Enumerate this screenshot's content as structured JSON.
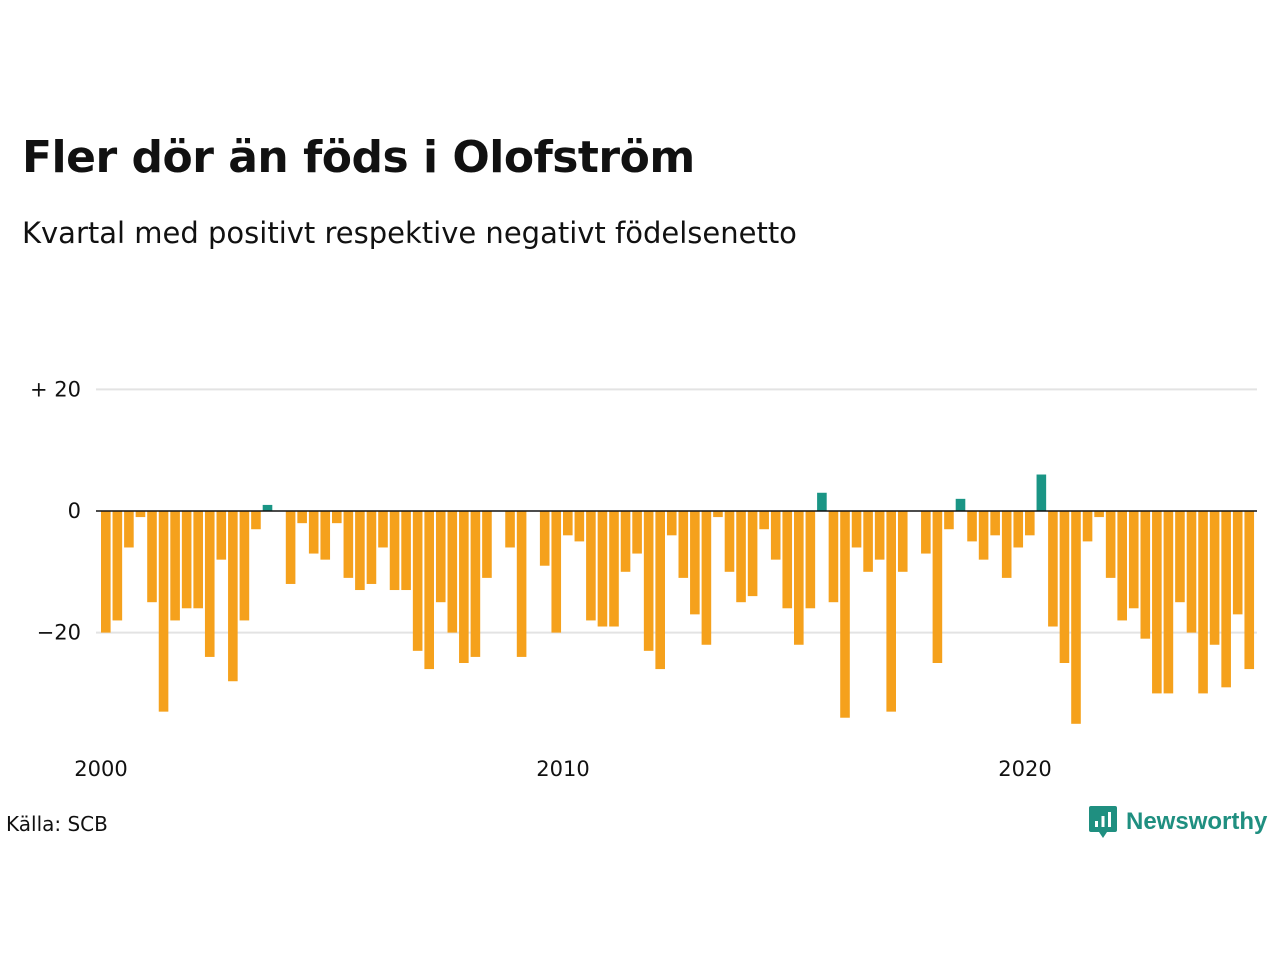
{
  "source_label": "Källa: SCB",
  "brand": "Newsworthy",
  "colors": {
    "positive": "#1a9585",
    "negative": "#f5a11c",
    "grid": "#e3e3e3",
    "zero_line": "#111111"
  },
  "chart_data": {
    "type": "bar",
    "title": "Fler dör än föds i Olofström",
    "subtitle": "Kvartal med positivt respektive negativt födelsenetto",
    "x_start": "2000 Q1",
    "x_ticks": [
      {
        "label": "2000",
        "index": 0
      },
      {
        "label": "2010",
        "index": 40
      },
      {
        "label": "2020",
        "index": 80
      }
    ],
    "y_ticks": [
      {
        "label": "+ 20",
        "value": 20
      },
      {
        "label": "0",
        "value": 0
      },
      {
        "label": "−20",
        "value": -20
      }
    ],
    "ylim": [
      -37,
      20
    ],
    "grid": true,
    "values": [
      -20,
      -18,
      -6,
      -1,
      -15,
      -33,
      -18,
      -16,
      -16,
      -24,
      -8,
      -28,
      -18,
      -3,
      1,
      0,
      -12,
      -2,
      -7,
      -8,
      -2,
      -11,
      -13,
      -12,
      -6,
      -13,
      -13,
      -23,
      -26,
      -15,
      -20,
      -25,
      -24,
      -11,
      0,
      -6,
      -24,
      0,
      -9,
      -20,
      -4,
      -5,
      -18,
      -19,
      -19,
      -10,
      -7,
      -23,
      -26,
      -4,
      -11,
      -17,
      -22,
      -1,
      -10,
      -15,
      -14,
      -3,
      -8,
      -16,
      -22,
      -16,
      3,
      -15,
      -34,
      -6,
      -10,
      -8,
      -33,
      -10,
      0,
      -7,
      -25,
      -3,
      2,
      -5,
      -8,
      -4,
      -11,
      -6,
      -4,
      6,
      -19,
      -25,
      -35,
      -5,
      -1,
      -11,
      -18,
      -16,
      -21,
      -30,
      -30,
      -15,
      -20,
      -30,
      -22,
      -29,
      -17,
      -26
    ]
  }
}
